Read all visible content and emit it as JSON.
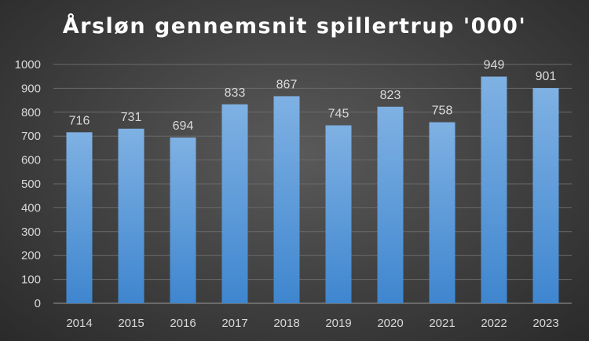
{
  "chart_data": {
    "type": "bar",
    "title": "Årsløn gennemsnit spillertrup '000'",
    "categories": [
      "2014",
      "2015",
      "2016",
      "2017",
      "2018",
      "2019",
      "2020",
      "2021",
      "2022",
      "2023"
    ],
    "values": [
      716,
      731,
      694,
      833,
      867,
      745,
      823,
      758,
      949,
      901
    ],
    "value_labels": [
      "716",
      "731",
      "694",
      "833",
      "867",
      "745",
      "823",
      "758",
      "949",
      "901"
    ],
    "y_ticks": [
      "0",
      "100",
      "200",
      "300",
      "400",
      "500",
      "600",
      "700",
      "800",
      "900",
      "1000"
    ],
    "ylim": [
      0,
      1000
    ],
    "grid": true,
    "legend": "none",
    "colors": {
      "bar_top": "#7fb1e3",
      "bar_bottom": "#3f86cf",
      "label": "#d9d9d9",
      "grid": "#6a6a6a",
      "axis": "#9a9a9a"
    }
  }
}
